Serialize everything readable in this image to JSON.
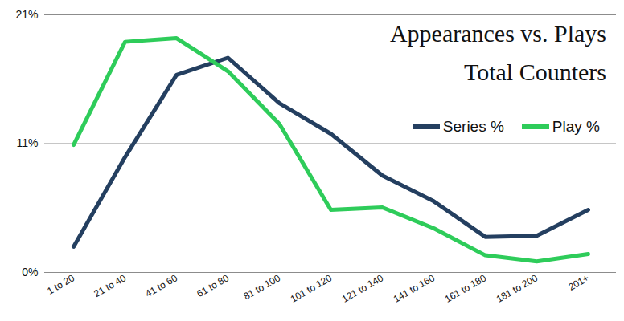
{
  "chart_data": {
    "type": "line",
    "title": "Appearances vs. Plays",
    "subtitle": "Total Counters",
    "categories": [
      "1 to 20",
      "21 to 40",
      "41 to 60",
      "61 to 80",
      "81 to 100",
      "101 to 120",
      "121 to 140",
      "141 to 160",
      "161 to 180",
      "181 to 200",
      "201+"
    ],
    "series": [
      {
        "name": "Series %",
        "color": "#243f60",
        "values": [
          2.1,
          9.4,
          16.1,
          17.5,
          13.8,
          11.3,
          7.9,
          5.8,
          2.9,
          3.0,
          5.1
        ]
      },
      {
        "name": "Play %",
        "color": "#2ecc5a",
        "values": [
          10.4,
          18.8,
          19.1,
          16.4,
          12.1,
          5.1,
          5.3,
          3.6,
          1.4,
          0.9,
          1.5
        ]
      }
    ],
    "ylim": [
      0,
      21
    ],
    "yticks": [
      {
        "value": 0,
        "label": "0%"
      },
      {
        "value": 10.5,
        "label": "11%"
      },
      {
        "value": 21,
        "label": "21%"
      }
    ],
    "grid": true,
    "legend": "top-right"
  }
}
